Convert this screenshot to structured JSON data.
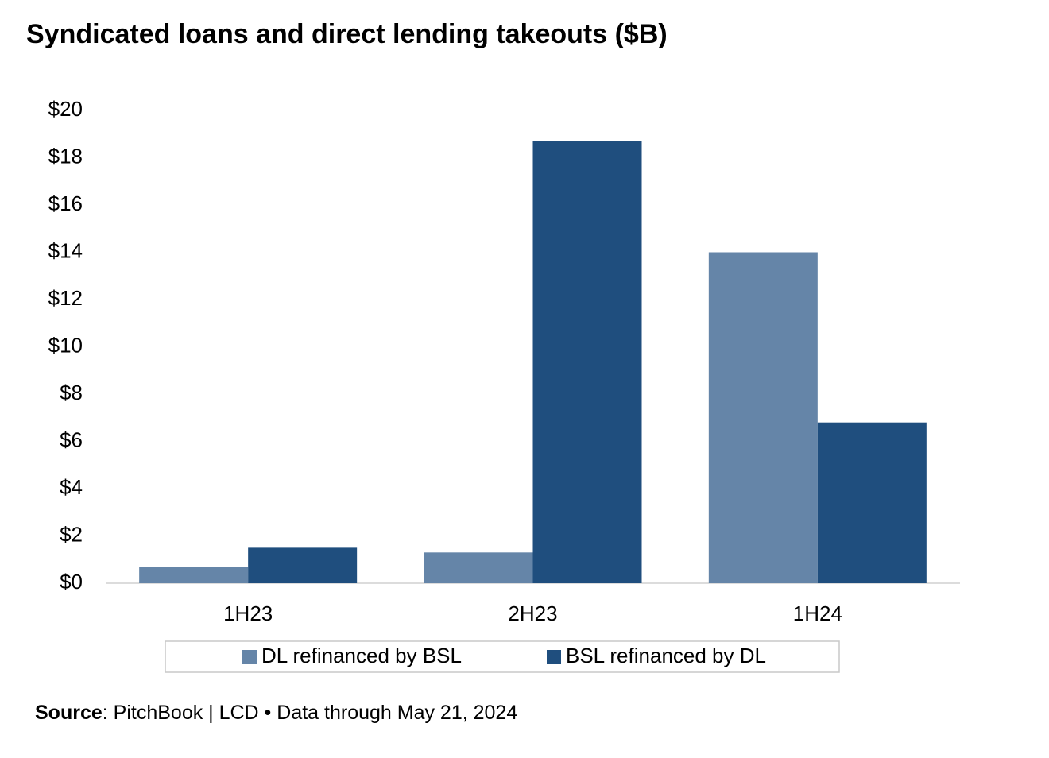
{
  "chart_data": {
    "type": "bar",
    "title": "Syndicated loans and direct lending takeouts ($B)",
    "categories": [
      "1H23",
      "2H23",
      "1H24"
    ],
    "series": [
      {
        "name": "DL refinanced by BSL",
        "color": "#6585a8",
        "values": [
          0.7,
          1.3,
          14.0
        ]
      },
      {
        "name": "BSL refinanced by DL",
        "color": "#1f4e7e",
        "values": [
          1.5,
          18.7,
          6.8
        ]
      }
    ],
    "ylim": [
      0,
      20
    ],
    "yticks": [
      {
        "value": 0,
        "label": "$0"
      },
      {
        "value": 2,
        "label": "$2"
      },
      {
        "value": 4,
        "label": "$4"
      },
      {
        "value": 6,
        "label": "$6"
      },
      {
        "value": 8,
        "label": "$8"
      },
      {
        "value": 10,
        "label": "$10"
      },
      {
        "value": 12,
        "label": "$12"
      },
      {
        "value": 14,
        "label": "$14"
      },
      {
        "value": 16,
        "label": "$16"
      },
      {
        "value": 18,
        "label": "$18"
      },
      {
        "value": 20,
        "label": "$20"
      }
    ],
    "legend": "bottom",
    "source_label": "Source",
    "source_text": ": PitchBook | LCD • Data through May 21, 2024"
  }
}
